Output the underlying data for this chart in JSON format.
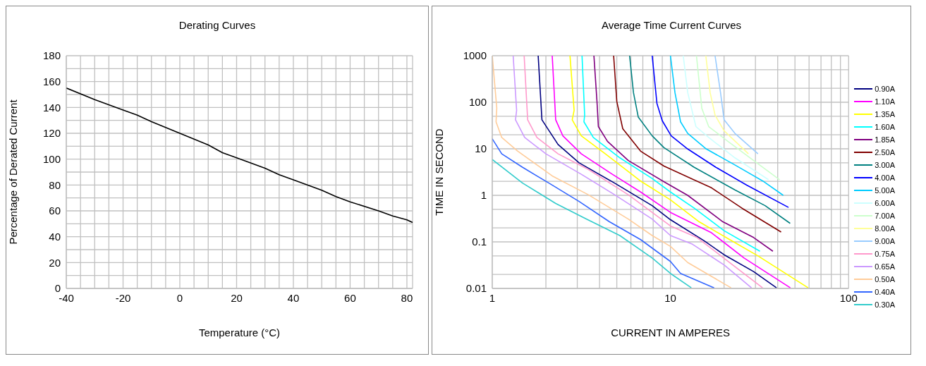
{
  "chart_data": [
    {
      "type": "line",
      "title": "Derating Curves",
      "xlabel": "Temperature (°C)",
      "ylabel": "Percentage of Derated Current",
      "grid": true,
      "legend": false,
      "marker": "none",
      "line_style": "solid",
      "xlim": [
        -40,
        82
      ],
      "ylim": [
        0,
        180
      ],
      "xticks": [
        -40,
        {
          "value": -35,
          "label": null
        },
        {
          "value": -30,
          "label": null
        },
        {
          "value": -25,
          "label": null
        },
        -20,
        {
          "value": -15,
          "label": null
        },
        {
          "value": -10,
          "label": null
        },
        {
          "value": -5,
          "label": null
        },
        0,
        {
          "value": 5,
          "label": null
        },
        {
          "value": 10,
          "label": null
        },
        {
          "value": 15,
          "label": null
        },
        20,
        {
          "value": 25,
          "label": null
        },
        {
          "value": 30,
          "label": null
        },
        {
          "value": 35,
          "label": null
        },
        40,
        {
          "value": 45,
          "label": null
        },
        {
          "value": 50,
          "label": null
        },
        {
          "value": 55,
          "label": null
        },
        60,
        {
          "value": 65,
          "label": null
        },
        {
          "value": 70,
          "label": null
        },
        {
          "value": 75,
          "label": null
        },
        80
      ],
      "yticks": [
        0,
        {
          "value": 10,
          "label": null
        },
        20,
        {
          "value": 30,
          "label": null
        },
        40,
        {
          "value": 50,
          "label": null
        },
        60,
        {
          "value": 70,
          "label": null
        },
        80,
        {
          "value": 90,
          "label": null
        },
        100,
        {
          "value": 110,
          "label": null
        },
        120,
        {
          "value": 130,
          "label": null
        },
        140,
        {
          "value": 150,
          "label": null
        },
        160,
        {
          "value": 170,
          "label": null
        },
        180
      ],
      "series": [
        {
          "color": "#000000",
          "x": [
            -40,
            -30,
            -20,
            -15,
            -10,
            0,
            10,
            15,
            20,
            30,
            35,
            40,
            50,
            55,
            60,
            70,
            75,
            80,
            82
          ],
          "values": [
            155,
            146,
            138,
            134,
            129,
            120,
            111,
            105,
            101,
            93,
            88,
            84,
            76,
            71,
            67,
            60,
            56,
            53,
            51
          ]
        }
      ]
    },
    {
      "type": "line",
      "title": "Average Time Current Curves",
      "xlabel": "CURRENT IN AMPERES",
      "ylabel": "TIME IN SECOND",
      "grid": true,
      "legend": "right",
      "marker": "none",
      "line_style": "solid",
      "log": "xy",
      "xlim": [
        1,
        100
      ],
      "ylim": [
        0.01,
        1000
      ],
      "xticks": [
        1,
        {
          "value": 2,
          "label": null
        },
        {
          "value": 3,
          "label": null
        },
        {
          "value": 4,
          "label": null
        },
        {
          "value": 5,
          "label": null
        },
        {
          "value": 6,
          "label": null
        },
        {
          "value": 7,
          "label": null
        },
        {
          "value": 8,
          "label": null
        },
        {
          "value": 9,
          "label": null
        },
        10,
        {
          "value": 20,
          "label": null
        },
        {
          "value": 30,
          "label": null
        },
        {
          "value": 40,
          "label": null
        },
        {
          "value": 50,
          "label": null
        },
        {
          "value": 60,
          "label": null
        },
        {
          "value": 70,
          "label": null
        },
        {
          "value": 80,
          "label": null
        },
        {
          "value": 90,
          "label": null
        },
        100
      ],
      "yticks": [
        0.01,
        {
          "value": 0.02,
          "label": null
        },
        {
          "value": 0.05,
          "label": null
        },
        0.1,
        {
          "value": 0.2,
          "label": null
        },
        {
          "value": 0.5,
          "label": null
        },
        1,
        {
          "value": 2,
          "label": null
        },
        {
          "value": 5,
          "label": null
        },
        10,
        {
          "value": 20,
          "label": null
        },
        {
          "value": 50,
          "label": null
        },
        100,
        {
          "value": 200,
          "label": null
        },
        {
          "value": 500,
          "label": null
        },
        1000
      ],
      "series": [
        {
          "name": "0.90A",
          "color": "#000080",
          "x": [
            1.81,
            1.9,
            2.34,
            3.07,
            4.86,
            7.9,
            10,
            15.5,
            20,
            29.3,
            39.4
          ],
          "values": [
            1000,
            42,
            12.4,
            5.0,
            1.83,
            0.6,
            0.3,
            0.105,
            0.053,
            0.023,
            0.0103
          ]
        },
        {
          "name": "1.10A",
          "color": "#ff00ff",
          "x": [
            2.17,
            2.27,
            2.49,
            3.16,
            4.72,
            6.8,
            10,
            17,
            25.9,
            47.1
          ],
          "values": [
            1000,
            42,
            19,
            7.8,
            2.84,
            1.18,
            0.43,
            0.157,
            0.045,
            0.0103
          ]
        },
        {
          "name": "1.35A",
          "color": "#ffff00",
          "x": [
            2.73,
            2.88,
            2.81,
            3.16,
            4.31,
            6.8,
            10,
            14.5,
            21.5,
            31,
            59.3
          ],
          "values": [
            1000,
            67,
            42,
            19,
            7.8,
            2.03,
            0.8,
            0.27,
            0.112,
            0.05,
            0.0103
          ]
        },
        {
          "name": "1.60A",
          "color": "#00ffff",
          "x": [
            3.19,
            3.3,
            3.27,
            3.69,
            5.2,
            7.9,
            10,
            13.6,
            20,
            31.8
          ],
          "values": [
            1000,
            53,
            38,
            17.5,
            6.4,
            2.3,
            1.18,
            0.53,
            0.174,
            0.063
          ]
        },
        {
          "name": "1.85A",
          "color": "#800080",
          "x": [
            3.72,
            3.87,
            3.94,
            4.43,
            5.8,
            9.2,
            12.5,
            19.7,
            29.3,
            37.6
          ],
          "values": [
            1000,
            104,
            30,
            14.5,
            5.6,
            1.96,
            1.0,
            0.27,
            0.124,
            0.063
          ]
        },
        {
          "name": "2.50A",
          "color": "#800000",
          "x": [
            4.8,
            5.0,
            5.4,
            6.8,
            9.2,
            17,
            25.2,
            41.8
          ],
          "values": [
            1000,
            104,
            27,
            8.9,
            4.25,
            1.45,
            0.53,
            0.163
          ]
        },
        {
          "name": "3.00A",
          "color": "#008080",
          "x": [
            5.9,
            6.2,
            6.6,
            7.9,
            9.2,
            13.6,
            23,
            34,
            47
          ],
          "values": [
            1000,
            162,
            48,
            19,
            10.6,
            4.0,
            1.31,
            0.6,
            0.25
          ]
        },
        {
          "name": "4.00A",
          "color": "#0000ff",
          "x": [
            7.9,
            8.4,
            9.0,
            10.1,
            12.5,
            18,
            26.8,
            46
          ],
          "values": [
            1000,
            94,
            40,
            19,
            9.9,
            4.0,
            1.66,
            0.55
          ]
        },
        {
          "name": "5.00A",
          "color": "#00ccff",
          "x": [
            10,
            10.6,
            11.4,
            12.5,
            15.9,
            23,
            33,
            43
          ],
          "values": [
            1000,
            162,
            38,
            21.5,
            9.9,
            4.5,
            2.03,
            1.0
          ]
        },
        {
          "name": "6.00A",
          "color": "#ccffff",
          "x": [
            11.8,
            12.5,
            13.9,
            16.4,
            23,
            35.5
          ],
          "values": [
            1000,
            162,
            30,
            17.5,
            6.4,
            2.17
          ]
        },
        {
          "name": "7.00A",
          "color": "#ccffcc",
          "x": [
            14,
            15,
            16.4,
            21,
            29.3,
            41
          ],
          "values": [
            1000,
            74,
            30,
            14.5,
            5.6,
            2.17
          ]
        },
        {
          "name": "8.00A",
          "color": "#ffff99",
          "x": [
            15.8,
            16.7,
            17.8,
            20,
            27.4
          ],
          "values": [
            1000,
            162,
            53,
            24.5,
            7.8
          ]
        },
        {
          "name": "9.00A",
          "color": "#99ccff",
          "x": [
            17.8,
            19.1,
            20,
            23,
            31
          ],
          "values": [
            1000,
            162,
            42,
            21.5,
            7.8
          ]
        },
        {
          "name": "0.75A",
          "color": "#ff99cc",
          "x": [
            1.51,
            1.58,
            1.78,
            2.34,
            3.46,
            5.8,
            10,
            14.1,
            21.5,
            32.9
          ],
          "values": [
            1000,
            42,
            17.5,
            7.8,
            3.6,
            1.03,
            0.22,
            0.124,
            0.036,
            0.0103
          ]
        },
        {
          "name": "0.65A",
          "color": "#cc99ff",
          "x": [
            1.31,
            1.37,
            1.35,
            1.52,
            2.0,
            3.16,
            4.86,
            7.9,
            10,
            13.3,
            20,
            28.5
          ],
          "values": [
            1000,
            67,
            42,
            17.5,
            7.8,
            2.84,
            1.03,
            0.31,
            0.137,
            0.089,
            0.032,
            0.0103
          ]
        },
        {
          "name": "0.50A",
          "color": "#ffcc99",
          "x": [
            1.0,
            1.06,
            1.05,
            1.13,
            1.39,
            2.19,
            3.46,
            5.8,
            7.9,
            10,
            12.5,
            21.9
          ],
          "values": [
            1000,
            75,
            38,
            17.5,
            8.9,
            2.56,
            1.03,
            0.31,
            0.137,
            0.08,
            0.036,
            0.0103
          ]
        },
        {
          "name": "0.40A",
          "color": "#3366ff",
          "x": [
            1.0,
            1.13,
            1.48,
            2.08,
            3.07,
            4.55,
            6.8,
            10,
            11.4,
            17.6
          ],
          "values": [
            16.4,
            7.8,
            4.0,
            1.83,
            0.74,
            0.27,
            0.112,
            0.038,
            0.021,
            0.0103
          ]
        },
        {
          "name": "0.30A",
          "color": "#33cccc",
          "x": [
            1.0,
            1.48,
            2.27,
            3.37,
            5.2,
            7.9,
            10,
            13.1
          ],
          "values": [
            5.9,
            1.83,
            0.67,
            0.31,
            0.137,
            0.045,
            0.021,
            0.0103
          ]
        }
      ]
    }
  ]
}
